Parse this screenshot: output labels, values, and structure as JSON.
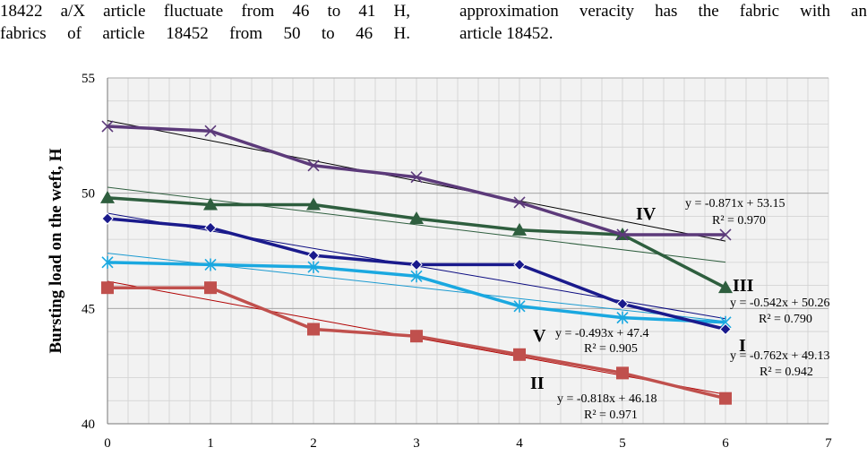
{
  "paragraph_fragment": {
    "left_lines": [
      [
        "18422",
        "a/X",
        "article",
        "fluctuate",
        "from",
        "46",
        "to",
        "41",
        "H,"
      ],
      [
        "fabrics",
        "of",
        "article",
        "18452",
        "from",
        "50",
        "to",
        "46",
        "H."
      ]
    ],
    "right_lines": [
      [
        "approximation",
        "veracity",
        "has",
        "the",
        "fabric",
        "with",
        "an"
      ],
      [
        "article 18452."
      ]
    ]
  },
  "chart_data": {
    "type": "line",
    "ylabel": "Bursting load on the weft, H",
    "xlabel": "",
    "xlim": [
      0,
      7
    ],
    "ylim": [
      40,
      55
    ],
    "x_ticks": [
      "0",
      "1",
      "2",
      "3",
      "4",
      "5",
      "6",
      "7"
    ],
    "y_ticks": [
      "40",
      "45",
      "50",
      "55"
    ],
    "grid": true,
    "background": "#f2f2f2",
    "x": [
      0,
      1,
      2,
      3,
      4,
      5,
      6
    ],
    "series": [
      {
        "name": "I",
        "marker": "diamond",
        "color": "#1a1a8c",
        "values": [
          48.9,
          48.5,
          47.3,
          46.9,
          46.9,
          45.2,
          44.1
        ],
        "trendline": {
          "slope": -0.762,
          "intercept": 49.13,
          "color": "#0a0a80"
        },
        "equation": "y = -0.762x + 49.13",
        "r2": "R² = 0.942"
      },
      {
        "name": "II",
        "marker": "square",
        "color": "#c0504d",
        "values": [
          45.9,
          45.9,
          44.1,
          43.8,
          43.0,
          42.2,
          41.1
        ],
        "trendline": {
          "slope": -0.818,
          "intercept": 46.18,
          "color": "#b00000"
        },
        "equation": "y = -0.818x + 46.18",
        "r2": "R² = 0.971"
      },
      {
        "name": "III",
        "marker": "triangle",
        "color": "#2e5e3e",
        "values": [
          49.8,
          49.5,
          49.5,
          48.9,
          48.4,
          48.2,
          45.9
        ],
        "trendline": {
          "slope": -0.542,
          "intercept": 50.26,
          "color": "#2e5e3e"
        },
        "equation": "y = -0.542x + 50.26",
        "r2": "R² = 0.790"
      },
      {
        "name": "IV",
        "marker": "x",
        "color": "#5c3a7a",
        "values": [
          52.9,
          52.7,
          51.2,
          50.7,
          49.6,
          48.2,
          48.2
        ],
        "trendline": {
          "slope": -0.871,
          "intercept": 53.15,
          "color": "#000000"
        },
        "equation": "y = -0.871x + 53.15",
        "r2": "R² = 0.970"
      },
      {
        "name": "V",
        "marker": "star",
        "color": "#1aa8e0",
        "values": [
          47.0,
          46.9,
          46.8,
          46.4,
          45.1,
          44.6,
          44.4
        ],
        "trendline": {
          "slope": -0.493,
          "intercept": 47.4,
          "color": "#1a9ad0"
        },
        "equation": "y = -0.493x + 47.4",
        "r2": "R² = 0.905"
      }
    ]
  }
}
